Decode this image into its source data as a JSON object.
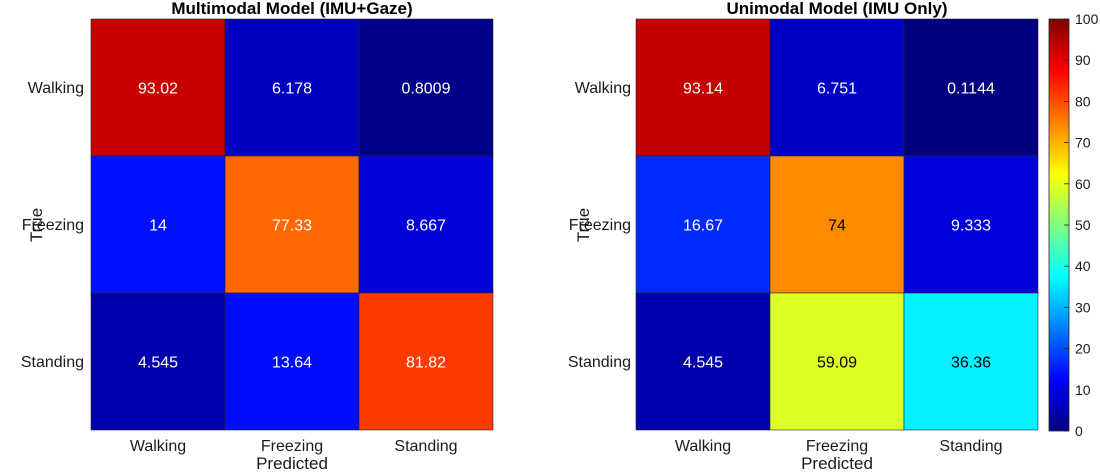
{
  "chart_data": {
    "type": "heatmap",
    "colormap": "jet",
    "clim": [
      0,
      100
    ],
    "colorbar": {
      "ticks": [
        "0",
        "10",
        "20",
        "30",
        "40",
        "50",
        "60",
        "70",
        "80",
        "90",
        "100"
      ],
      "placement": "right"
    },
    "panels": [
      {
        "title": "Multimodal Model (IMU+Gaze)",
        "xlabel": "Predicted",
        "ylabel": "True",
        "x_categories": [
          "Walking",
          "Freezing",
          "Standing"
        ],
        "y_categories": [
          "Walking",
          "Freezing",
          "Standing"
        ],
        "values": [
          [
            93.02,
            6.178,
            0.8009
          ],
          [
            14,
            77.33,
            8.667
          ],
          [
            4.545,
            13.64,
            81.82
          ]
        ],
        "labels": [
          [
            "93.02",
            "6.178",
            "0.8009"
          ],
          [
            "14",
            "77.33",
            "8.667"
          ],
          [
            "4.545",
            "13.64",
            "81.82"
          ]
        ]
      },
      {
        "title": "Unimodal Model (IMU Only)",
        "xlabel": "Predicted",
        "ylabel": "True",
        "x_categories": [
          "Walking",
          "Freezing",
          "Standing"
        ],
        "y_categories": [
          "Walking",
          "Freezing",
          "Standing"
        ],
        "values": [
          [
            93.14,
            6.751,
            0.1144
          ],
          [
            16.67,
            74,
            9.333
          ],
          [
            4.545,
            59.09,
            36.36
          ]
        ],
        "labels": [
          [
            "93.14",
            "6.751",
            "0.1144"
          ],
          [
            "16.67",
            "74",
            "9.333"
          ],
          [
            "4.545",
            "59.09",
            "36.36"
          ]
        ]
      }
    ]
  }
}
